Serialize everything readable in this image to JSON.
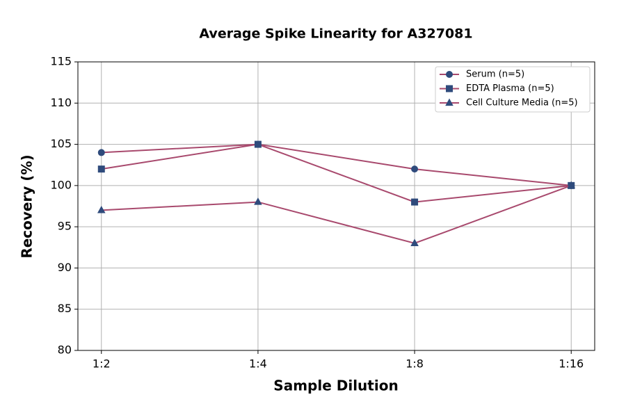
{
  "chart_data": {
    "type": "line",
    "title": "Average Spike Linearity for A327081",
    "xlabel": "Sample Dilution",
    "ylabel": "Recovery (%)",
    "categories": [
      "1:2",
      "1:4",
      "1:8",
      "1:16"
    ],
    "series": [
      {
        "name": "Serum (n=5)",
        "color": "#a8496d",
        "marker_color": "#2f4b7c",
        "marker": "circle",
        "values": [
          104,
          105,
          102,
          100
        ]
      },
      {
        "name": "EDTA Plasma (n=5)",
        "color": "#a8496d",
        "marker_color": "#2f4b7c",
        "marker": "square",
        "values": [
          102,
          105,
          98,
          100
        ]
      },
      {
        "name": "Cell Culture Media (n=5)",
        "color": "#a8496d",
        "marker_color": "#2f4b7c",
        "marker": "triangle",
        "values": [
          97,
          98,
          93,
          100
        ]
      }
    ],
    "ylim": [
      80,
      115
    ],
    "yticks": [
      80,
      85,
      90,
      95,
      100,
      105,
      110,
      115
    ],
    "grid": true,
    "legend": "upper right"
  }
}
